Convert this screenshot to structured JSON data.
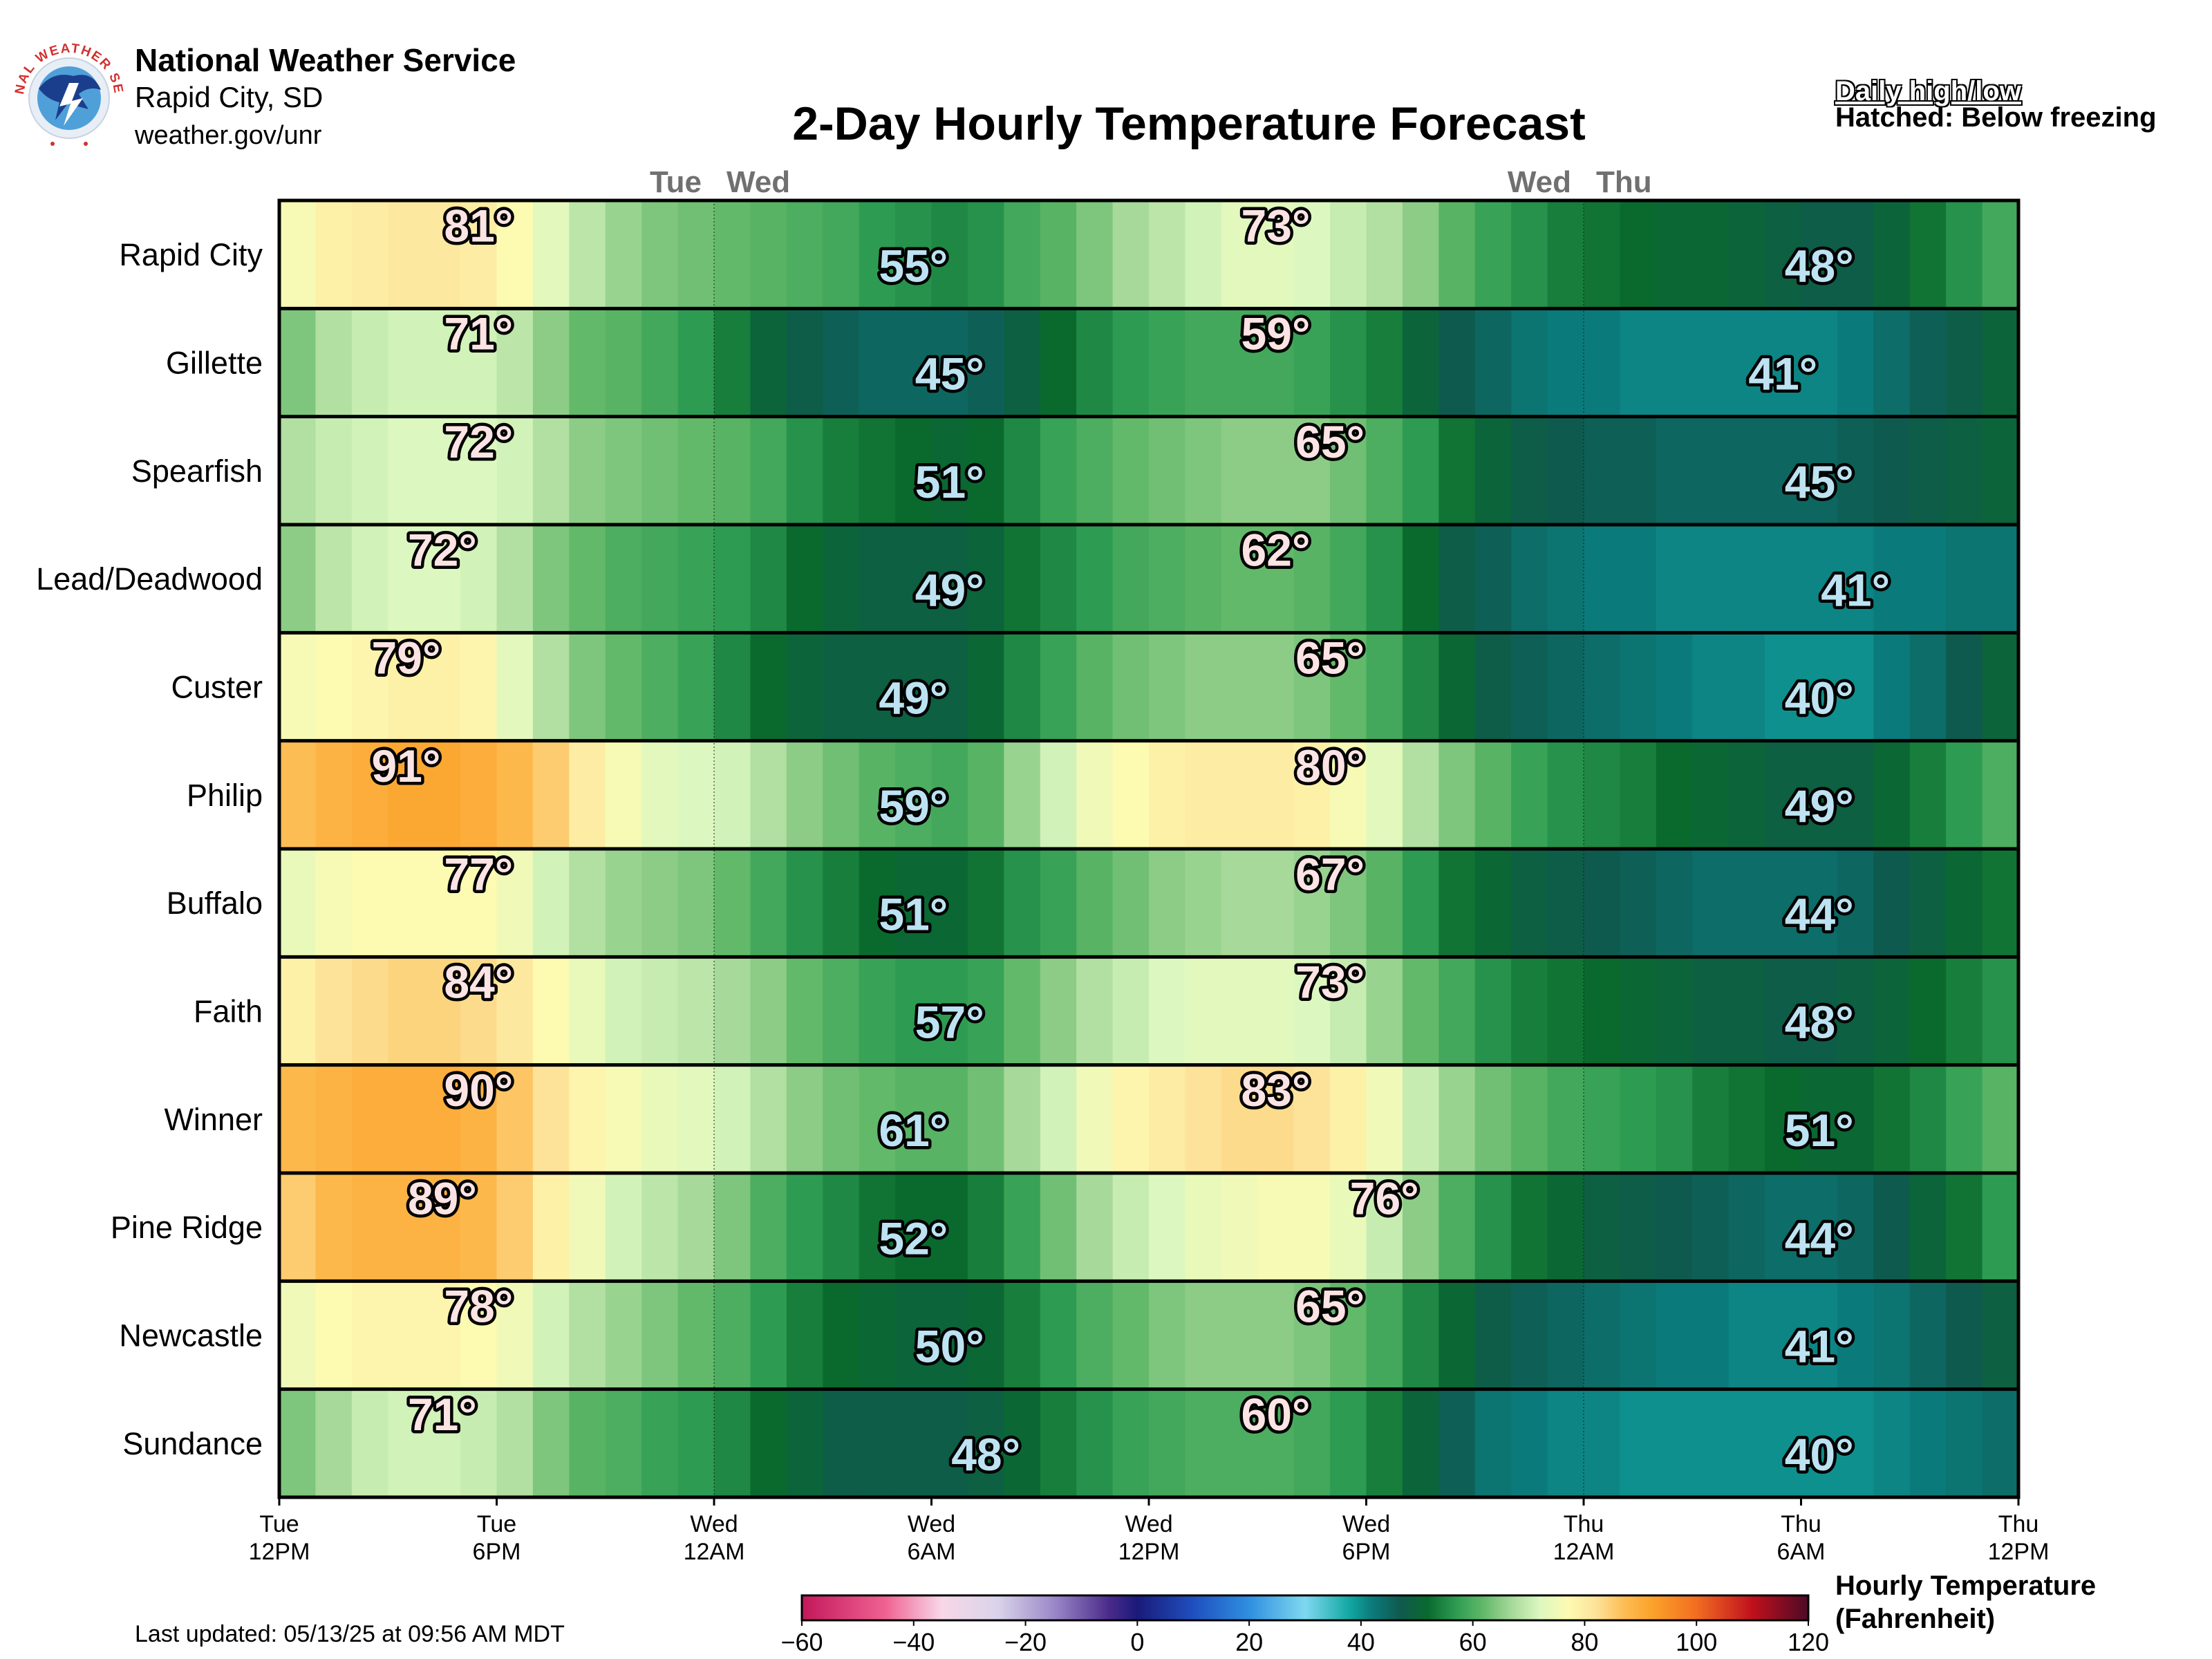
{
  "header": {
    "org_name": "National Weather Service",
    "office": "Rapid City, SD",
    "url": "weather.gov/unr",
    "logo_icon": "nws-logo-icon",
    "logo_text": "NATIONAL WEATHER SERVICE",
    "title": "2-Day Hourly Temperature Forecast",
    "note_daily": "Daily high/low",
    "note_hatched": "Hatched: Below freezing"
  },
  "footer": {
    "last_updated": "Last updated: 05/13/25 at 09:56 AM MDT",
    "colorbar_title_line1": "Hourly Temperature",
    "colorbar_title_line2": "(Fahrenheit)"
  },
  "chart_data": {
    "type": "heatmap",
    "title": "2-Day Hourly Temperature Forecast",
    "x_unit": "hour",
    "x_range_hours": [
      0,
      48
    ],
    "x_ticks": [
      {
        "hour": 0,
        "line1": "Tue",
        "line2": "12PM"
      },
      {
        "hour": 6,
        "line1": "Tue",
        "line2": "6PM"
      },
      {
        "hour": 12,
        "line1": "Wed",
        "line2": "12AM"
      },
      {
        "hour": 18,
        "line1": "Wed",
        "line2": "6AM"
      },
      {
        "hour": 24,
        "line1": "Wed",
        "line2": "12PM"
      },
      {
        "hour": 30,
        "line1": "Wed",
        "line2": "6PM"
      },
      {
        "hour": 36,
        "line1": "Thu",
        "line2": "12AM"
      },
      {
        "hour": 42,
        "line1": "Thu",
        "line2": "6AM"
      },
      {
        "hour": 48,
        "line1": "Thu",
        "line2": "12PM"
      }
    ],
    "day_labels": [
      {
        "hour": 12,
        "left": "Tue",
        "right": "Wed"
      },
      {
        "hour": 36,
        "left": "Wed",
        "right": "Thu"
      }
    ],
    "rows": [
      {
        "name": "Rapid City",
        "high": 81,
        "high_hour": 5.5,
        "low": 55,
        "low_hour": 17.5,
        "high2": 73,
        "high2_hour": 27.5,
        "low2": 48,
        "low2_hour": 42.5,
        "hourly": [
          76,
          79,
          80,
          81,
          81,
          80,
          77,
          73,
          69,
          66,
          64,
          63,
          62,
          61,
          60,
          59,
          57,
          56,
          55,
          56,
          59,
          61,
          64,
          67,
          69,
          71,
          73,
          73,
          72,
          70,
          68,
          65,
          61,
          58,
          56,
          54,
          53,
          52,
          51,
          51,
          50,
          49,
          48,
          48,
          50,
          53,
          56,
          59
        ]
      },
      {
        "name": "Gillette",
        "high": 71,
        "high_hour": 5.5,
        "low": 45,
        "low_hour": 18.5,
        "high2": 59,
        "high2_hour": 27.5,
        "low2": 41,
        "low2_hour": 41.5,
        "hourly": [
          64,
          68,
          70,
          71,
          71,
          71,
          69,
          65,
          62,
          61,
          59,
          57,
          54,
          50,
          48,
          46,
          45,
          45,
          45,
          46,
          49,
          52,
          55,
          57,
          58,
          59,
          59,
          59,
          58,
          56,
          54,
          50,
          47,
          45,
          43,
          42,
          42,
          41,
          41,
          41,
          41,
          41,
          41,
          42,
          44,
          46,
          48,
          50
        ]
      },
      {
        "name": "Spearfish",
        "high": 72,
        "high_hour": 5.5,
        "low": 51,
        "low_hour": 18.5,
        "high2": 65,
        "high2_hour": 29.0,
        "low2": 45,
        "low2_hour": 42.5,
        "hourly": [
          68,
          70,
          71,
          72,
          72,
          72,
          71,
          68,
          65,
          64,
          63,
          62,
          61,
          59,
          56,
          54,
          53,
          52,
          51,
          52,
          55,
          58,
          60,
          62,
          63,
          64,
          65,
          65,
          65,
          63,
          60,
          57,
          53,
          50,
          48,
          47,
          46,
          46,
          45,
          45,
          45,
          45,
          45,
          46,
          47,
          48,
          49,
          50
        ]
      },
      {
        "name": "Lead/Deadwood",
        "high": 72,
        "high_hour": 4.5,
        "low": 49,
        "low_hour": 18.5,
        "high2": 62,
        "high2_hour": 27.5,
        "low2": 41,
        "low2_hour": 43.5,
        "hourly": [
          65,
          69,
          71,
          72,
          72,
          71,
          68,
          64,
          62,
          60,
          59,
          58,
          57,
          55,
          52,
          50,
          49,
          49,
          49,
          50,
          53,
          55,
          57,
          59,
          60,
          61,
          62,
          62,
          61,
          59,
          56,
          52,
          48,
          46,
          44,
          43,
          42,
          42,
          41,
          41,
          41,
          41,
          41,
          41,
          42,
          42,
          43,
          43
        ]
      },
      {
        "name": "Custer",
        "high": 79,
        "high_hour": 3.5,
        "low": 49,
        "low_hour": 17.5,
        "high2": 65,
        "high2_hour": 29.0,
        "low2": 40,
        "low2_hour": 42.5,
        "hourly": [
          76,
          77,
          78,
          79,
          79,
          78,
          73,
          68,
          64,
          62,
          60,
          58,
          55,
          52,
          50,
          49,
          49,
          49,
          49,
          51,
          55,
          58,
          61,
          63,
          64,
          65,
          65,
          65,
          64,
          62,
          59,
          55,
          51,
          48,
          46,
          45,
          44,
          43,
          42,
          41,
          41,
          40,
          40,
          40,
          42,
          44,
          47,
          50
        ]
      },
      {
        "name": "Philip",
        "high": 91,
        "high_hour": 3.5,
        "low": 59,
        "low_hour": 17.5,
        "high2": 80,
        "high2_hour": 29.0,
        "low2": 49,
        "low2_hour": 42.5,
        "hourly": [
          87,
          89,
          90,
          91,
          91,
          90,
          88,
          85,
          80,
          76,
          73,
          72,
          71,
          68,
          65,
          63,
          61,
          60,
          59,
          61,
          66,
          71,
          75,
          77,
          79,
          80,
          80,
          80,
          79,
          76,
          73,
          68,
          64,
          61,
          58,
          56,
          55,
          54,
          52,
          51,
          50,
          49,
          49,
          49,
          51,
          54,
          57,
          60
        ]
      },
      {
        "name": "Buffalo",
        "high": 77,
        "high_hour": 5.5,
        "low": 51,
        "low_hour": 17.5,
        "high2": 67,
        "high2_hour": 29.0,
        "low2": 44,
        "low2_hour": 42.5,
        "hourly": [
          74,
          76,
          77,
          77,
          77,
          77,
          75,
          71,
          68,
          66,
          65,
          64,
          62,
          59,
          56,
          54,
          52,
          51,
          51,
          53,
          56,
          58,
          61,
          63,
          65,
          66,
          67,
          67,
          66,
          64,
          61,
          57,
          53,
          51,
          49,
          48,
          47,
          46,
          45,
          44,
          44,
          44,
          44,
          45,
          47,
          49,
          51,
          53
        ]
      },
      {
        "name": "Faith",
        "high": 84,
        "high_hour": 5.5,
        "low": 57,
        "low_hour": 18.5,
        "high2": 73,
        "high2_hour": 29.0,
        "low2": 48,
        "low2_hour": 42.5,
        "hourly": [
          79,
          82,
          83,
          84,
          84,
          83,
          81,
          77,
          74,
          71,
          70,
          69,
          67,
          65,
          62,
          60,
          58,
          57,
          57,
          58,
          62,
          65,
          68,
          70,
          72,
          73,
          73,
          73,
          72,
          70,
          66,
          62,
          59,
          56,
          54,
          53,
          52,
          51,
          50,
          49,
          49,
          48,
          48,
          49,
          50,
          52,
          54,
          56
        ]
      },
      {
        "name": "Winner",
        "high": 90,
        "high_hour": 5.5,
        "low": 61,
        "low_hour": 17.5,
        "high2": 83,
        "high2_hour": 27.5,
        "low2": 51,
        "low2_hour": 42.5,
        "hourly": [
          88,
          89,
          90,
          90,
          90,
          89,
          86,
          82,
          78,
          76,
          74,
          73,
          71,
          68,
          65,
          63,
          62,
          61,
          61,
          63,
          67,
          71,
          75,
          78,
          80,
          82,
          83,
          83,
          82,
          79,
          75,
          70,
          66,
          63,
          61,
          59,
          58,
          57,
          56,
          54,
          53,
          52,
          51,
          51,
          53,
          55,
          58,
          61
        ]
      },
      {
        "name": "Pine Ridge",
        "high": 89,
        "high_hour": 4.5,
        "low": 52,
        "low_hour": 17.5,
        "high2": 76,
        "high2_hour": 30.5,
        "low2": 44,
        "low2_hour": 42.5,
        "hourly": [
          85,
          88,
          89,
          89,
          89,
          88,
          85,
          79,
          75,
          71,
          69,
          67,
          64,
          60,
          57,
          55,
          53,
          52,
          52,
          54,
          58,
          63,
          67,
          70,
          72,
          74,
          75,
          76,
          76,
          74,
          70,
          65,
          60,
          56,
          53,
          51,
          49,
          48,
          47,
          46,
          45,
          44,
          44,
          45,
          47,
          50,
          53,
          57
        ]
      },
      {
        "name": "Newcastle",
        "high": 78,
        "high_hour": 5.5,
        "low": 50,
        "low_hour": 18.5,
        "high2": 65,
        "high2_hour": 29.0,
        "low2": 41,
        "low2_hour": 42.5,
        "hourly": [
          75,
          77,
          78,
          78,
          78,
          77,
          75,
          71,
          68,
          66,
          64,
          62,
          60,
          57,
          54,
          52,
          51,
          50,
          50,
          51,
          54,
          57,
          60,
          62,
          64,
          65,
          65,
          65,
          64,
          62,
          59,
          55,
          51,
          48,
          46,
          45,
          44,
          43,
          42,
          42,
          41,
          41,
          41,
          42,
          43,
          45,
          47,
          49
        ]
      },
      {
        "name": "Sundance",
        "high": 71,
        "high_hour": 4.5,
        "low": 48,
        "low_hour": 19.5,
        "high2": 60,
        "high2_hour": 27.5,
        "low2": 40,
        "low2_hour": 42.5,
        "hourly": [
          64,
          67,
          70,
          71,
          71,
          70,
          68,
          64,
          61,
          60,
          58,
          57,
          55,
          52,
          50,
          48,
          48,
          48,
          48,
          49,
          51,
          54,
          56,
          58,
          59,
          60,
          60,
          60,
          59,
          57,
          54,
          50,
          46,
          43,
          42,
          41,
          41,
          40,
          40,
          40,
          40,
          40,
          40,
          40,
          41,
          42,
          43,
          44
        ]
      }
    ],
    "colorbar": {
      "min": -60,
      "max": 120,
      "ticks": [
        -60,
        -40,
        -20,
        0,
        20,
        40,
        60,
        80,
        100,
        120
      ],
      "tick_labels": [
        "−60",
        "−40",
        "−20",
        "0",
        "20",
        "40",
        "60",
        "80",
        "100",
        "120"
      ],
      "stops": [
        {
          "v": -60,
          "c": "#c2185b"
        },
        {
          "v": -45,
          "c": "#f06292"
        },
        {
          "v": -35,
          "c": "#f8d7e8"
        },
        {
          "v": -25,
          "c": "#d9d4ea"
        },
        {
          "v": -15,
          "c": "#9c89c9"
        },
        {
          "v": -5,
          "c": "#4a2a8a"
        },
        {
          "v": 0,
          "c": "#1a1a7a"
        },
        {
          "v": 10,
          "c": "#1f4fbf"
        },
        {
          "v": 20,
          "c": "#2f8fe0"
        },
        {
          "v": 30,
          "c": "#7fd8f0"
        },
        {
          "v": 38,
          "c": "#11a7a2"
        },
        {
          "v": 42,
          "c": "#0b7a7a"
        },
        {
          "v": 47,
          "c": "#0f5a4e"
        },
        {
          "v": 52,
          "c": "#0a6a2e"
        },
        {
          "v": 57,
          "c": "#2d9c52"
        },
        {
          "v": 62,
          "c": "#63b96a"
        },
        {
          "v": 67,
          "c": "#a7d99a"
        },
        {
          "v": 72,
          "c": "#dcf8c0"
        },
        {
          "v": 77,
          "c": "#fdfab2"
        },
        {
          "v": 82,
          "c": "#fde39a"
        },
        {
          "v": 87,
          "c": "#fdbd55"
        },
        {
          "v": 92,
          "c": "#fba32a"
        },
        {
          "v": 100,
          "c": "#f26d21"
        },
        {
          "v": 110,
          "c": "#c0101c"
        },
        {
          "v": 120,
          "c": "#4d0a27"
        }
      ]
    },
    "colors": {
      "high_label_fill": "#fde4e4",
      "low_label_fill": "#bde3f2",
      "label_outline": "#000000",
      "day_label_color": "#707070"
    }
  }
}
